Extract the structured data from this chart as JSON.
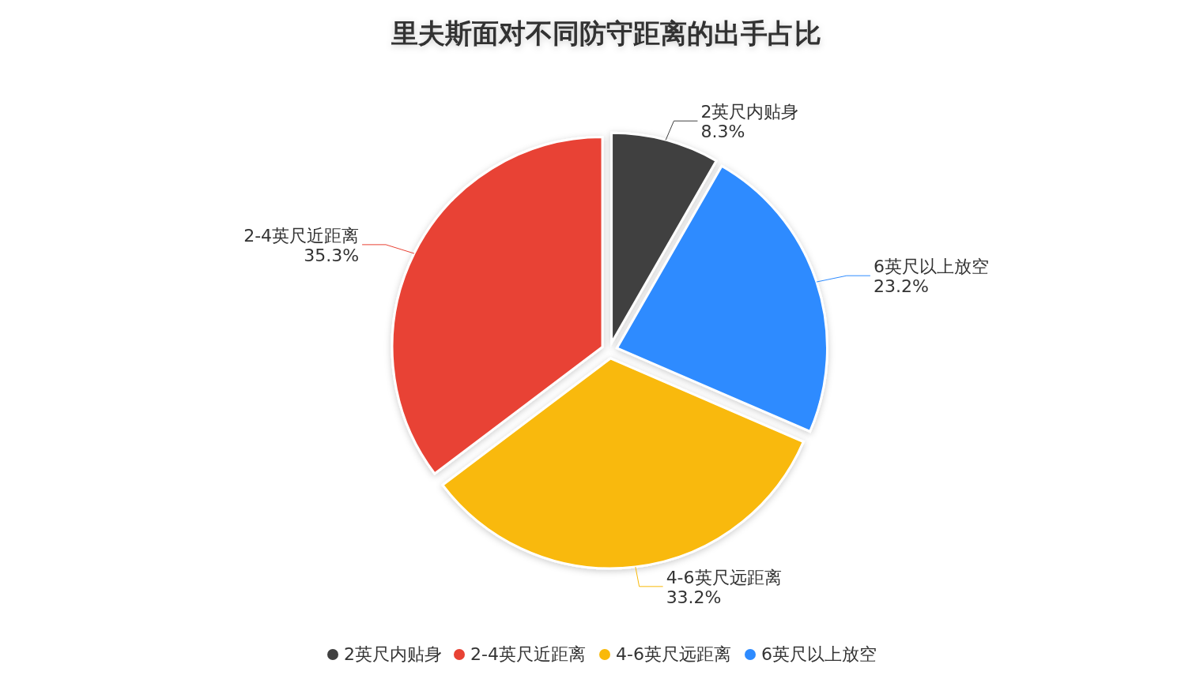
{
  "chart_data": {
    "type": "pie",
    "title": "里夫斯面对不同防守距离的出手占比",
    "categories": [
      "2英尺内贴身",
      "2-4英尺近距离",
      "4-6英尺远距离",
      "6英尺以上放空"
    ],
    "values": [
      8.3,
      35.3,
      33.2,
      23.2
    ],
    "colors": [
      "#404040",
      "#e84234",
      "#f9b908",
      "#2e8bff"
    ],
    "value_labels": [
      "8.3%",
      "35.3%",
      "33.2%",
      "23.2%"
    ],
    "legend": "bottom"
  }
}
